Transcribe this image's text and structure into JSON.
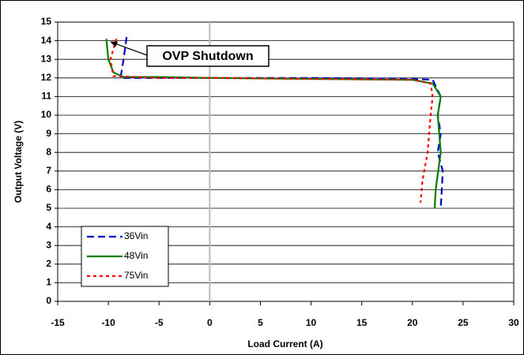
{
  "chart_data": {
    "type": "line",
    "xlabel": "Load Current (A)",
    "ylabel": "Output Voltage (V)",
    "xlim": [
      -15,
      30
    ],
    "ylim": [
      0,
      15
    ],
    "xticks": [
      -15,
      -10,
      -5,
      0,
      5,
      10,
      15,
      20,
      25,
      30
    ],
    "yticks": [
      0,
      1,
      2,
      3,
      4,
      5,
      6,
      7,
      8,
      9,
      10,
      11,
      12,
      13,
      14,
      15
    ],
    "grid": true,
    "legend": "lower left",
    "annotation": "OVP Shutdown",
    "series": [
      {
        "name": "36Vin",
        "color": "#0000cc",
        "dash": "dashed",
        "x": [
          -8.2,
          -8.5,
          -8.8,
          -5,
          0,
          10,
          20,
          22,
          22.8,
          22.5,
          22.8,
          22.5,
          23,
          22.8
        ],
        "values": [
          14.2,
          13,
          12.0,
          12.0,
          12,
          12,
          11.95,
          11.9,
          11,
          10,
          9,
          8,
          7,
          5
        ]
      },
      {
        "name": "48Vin",
        "color": "#008000",
        "dash": "solid",
        "x": [
          -10.2,
          -10,
          -9.5,
          -8.5,
          -5,
          0,
          10,
          20,
          22,
          22.8,
          22.5,
          22.8,
          22.3,
          22.2
        ],
        "values": [
          14.1,
          13,
          12.3,
          12.05,
          12.05,
          12,
          11.95,
          11.9,
          11.7,
          11,
          10,
          8,
          6,
          5
        ]
      },
      {
        "name": "75Vin",
        "color": "#ff0000",
        "dash": "dotted",
        "x": [
          -9.2,
          -9.8,
          -9.5,
          -5,
          0,
          10,
          20,
          21.8,
          22,
          21.8,
          21.5,
          21,
          20.8
        ],
        "values": [
          14.1,
          13,
          12.1,
          12.0,
          12,
          11.95,
          11.9,
          11.7,
          11,
          10,
          8,
          6.5,
          5.3
        ]
      }
    ]
  }
}
